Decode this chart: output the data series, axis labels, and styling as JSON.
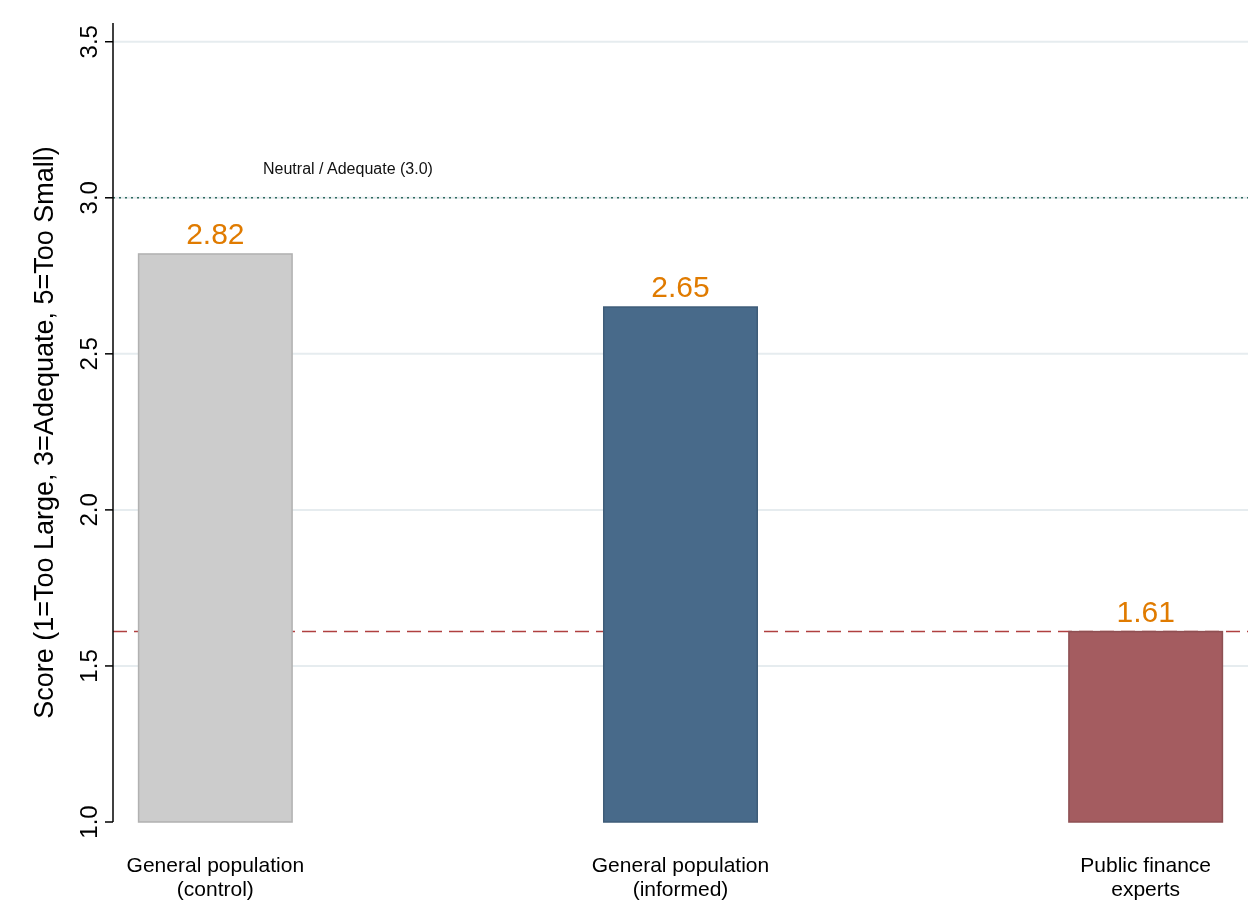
{
  "chart_data": {
    "type": "bar",
    "ylabel": "Score (1=Too Large, 3=Adequate, 5=Too Small)",
    "categories": [
      "General population\n(control)",
      "General population\n(informed)",
      "Public finance\nexperts"
    ],
    "values": [
      2.82,
      2.65,
      1.61
    ],
    "colors": [
      "#cccccc",
      "#486a8a",
      "#a45c60"
    ],
    "ylim": [
      1,
      3.56
    ],
    "yticks": [
      {
        "value": 1,
        "label": "1.0"
      },
      {
        "value": 1.5,
        "label": "1.5"
      },
      {
        "value": 2,
        "label": "2.0"
      },
      {
        "value": 2.5,
        "label": "2.5"
      },
      {
        "value": 3,
        "label": "3.0"
      },
      {
        "value": 3.5,
        "label": "3.5"
      }
    ],
    "grid": "y",
    "data_labels": true,
    "ref_lines": [
      {
        "axis": "y",
        "value": 3,
        "label": "Neutral / Adequate (3.0)",
        "color": "#2e6b5e",
        "line_style": "dotted"
      },
      {
        "axis": "y",
        "value": 1.61,
        "label": null,
        "color": "#b04040",
        "line_style": "dashed"
      }
    ]
  }
}
